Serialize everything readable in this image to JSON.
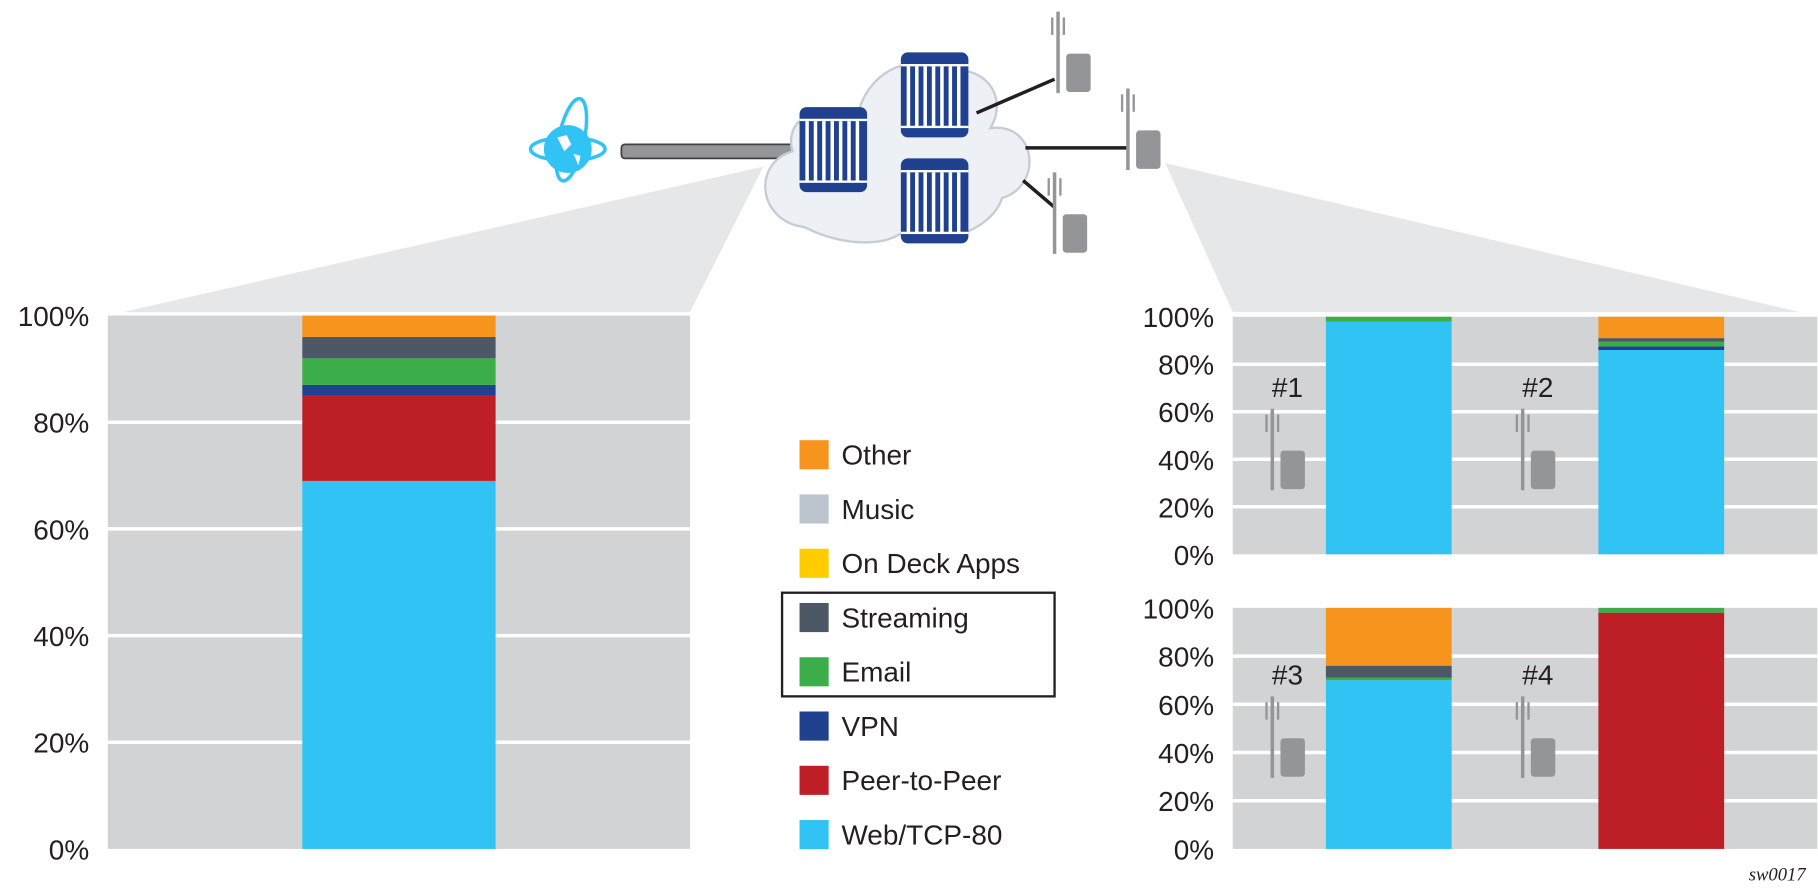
{
  "figure_id": "sw0017",
  "legend": {
    "items": [
      {
        "label": "Other",
        "color": "#F7941D"
      },
      {
        "label": "Music",
        "color": "#BCC4CE"
      },
      {
        "label": "On Deck Apps",
        "color": "#FFCC00"
      },
      {
        "label": "Streaming",
        "color": "#4D5866"
      },
      {
        "label": "Email",
        "color": "#3BAE4A"
      },
      {
        "label": "VPN",
        "color": "#1F418F"
      },
      {
        "label": "Peer-to-Peer",
        "color": "#BE1E25"
      },
      {
        "label": "Web/TCP-80",
        "color": "#31C3F3"
      }
    ],
    "highlighted": [
      "Streaming",
      "Email"
    ]
  },
  "network": {
    "icons": [
      "globe-icon",
      "pipe-link",
      "cloud",
      "router-icon",
      "cell-tower-icon"
    ]
  },
  "chart_data": [
    {
      "type": "bar",
      "stacked": true,
      "label": "",
      "yticks": [
        "0%",
        "20%",
        "40%",
        "60%",
        "80%",
        "100%"
      ],
      "ylim": [
        0,
        100
      ],
      "segments": {
        "Web/TCP-80": 69,
        "Peer-to-Peer": 16,
        "VPN": 2,
        "Email": 5,
        "Streaming": 4,
        "Other": 4
      }
    },
    {
      "type": "bar",
      "stacked": true,
      "label": "#1",
      "yticks": [
        "0%",
        "20%",
        "40%",
        "60%",
        "80%",
        "100%"
      ],
      "ylim": [
        0,
        100
      ],
      "segments": {
        "Web/TCP-80": 98,
        "Email": 2
      }
    },
    {
      "type": "bar",
      "stacked": true,
      "label": "#2",
      "yticks": [
        "0%",
        "20%",
        "40%",
        "60%",
        "80%",
        "100%"
      ],
      "ylim": [
        0,
        100
      ],
      "segments": {
        "Web/TCP-80": 86,
        "VPN": 1.5,
        "Streaming": 1.5,
        "Email": 2,
        "Other": 9
      }
    },
    {
      "type": "bar",
      "stacked": true,
      "label": "#3",
      "yticks": [
        "0%",
        "20%",
        "40%",
        "60%",
        "80%",
        "100%"
      ],
      "ylim": [
        0,
        100
      ],
      "segments": {
        "Web/TCP-80": 70,
        "Email": 1,
        "Streaming": 5,
        "Other": 24
      }
    },
    {
      "type": "bar",
      "stacked": true,
      "label": "#4",
      "yticks": [
        "0%",
        "20%",
        "40%",
        "60%",
        "80%",
        "100%"
      ],
      "ylim": [
        0,
        100
      ],
      "segments": {
        "Peer-to-Peer": 98,
        "Email": 2
      }
    }
  ]
}
